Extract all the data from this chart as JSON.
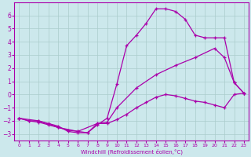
{
  "xlabel": "Windchill (Refroidissement éolien,°C)",
  "bg_color": "#cce8ec",
  "line_color": "#aa00aa",
  "grid_color": "#aacccc",
  "xlim": [
    -0.5,
    23.5
  ],
  "ylim": [
    -3.5,
    7.0
  ],
  "yticks": [
    -3,
    -2,
    -1,
    0,
    1,
    2,
    3,
    4,
    5,
    6
  ],
  "xticks": [
    0,
    1,
    2,
    3,
    4,
    5,
    6,
    7,
    8,
    9,
    10,
    11,
    12,
    13,
    14,
    15,
    16,
    17,
    18,
    19,
    20,
    21,
    22,
    23
  ],
  "curve_top_x": [
    0,
    1,
    2,
    3,
    4,
    5,
    6,
    7,
    8,
    9,
    10,
    11,
    12,
    13,
    14,
    15,
    16,
    17,
    18,
    19,
    20,
    21,
    22,
    23
  ],
  "curve_top_y": [
    -1.8,
    -2.0,
    -2.1,
    -2.3,
    -2.5,
    -2.7,
    -2.8,
    -2.9,
    -2.3,
    -1.8,
    0.8,
    3.7,
    4.5,
    5.4,
    6.5,
    6.5,
    6.3,
    5.7,
    4.5,
    4.3,
    4.3,
    4.3,
    0.9,
    0.1
  ],
  "curve_mid_x": [
    0,
    2,
    4,
    6,
    8,
    9,
    10,
    12,
    14,
    16,
    18,
    20,
    21,
    22,
    23
  ],
  "curve_mid_y": [
    -1.8,
    -2.0,
    -2.5,
    -2.8,
    -2.2,
    -2.1,
    -1.0,
    0.5,
    1.5,
    2.2,
    2.8,
    3.5,
    2.8,
    0.9,
    0.1
  ],
  "curve_bot_x": [
    0,
    1,
    2,
    3,
    4,
    5,
    6,
    7,
    8,
    9,
    10,
    11,
    12,
    13,
    14,
    15,
    16,
    17,
    18,
    19,
    20,
    21,
    22,
    23
  ],
  "curve_bot_y": [
    -1.8,
    -2.0,
    -2.0,
    -2.2,
    -2.4,
    -2.8,
    -2.9,
    -2.9,
    -2.2,
    -2.2,
    -1.9,
    -1.5,
    -1.0,
    -0.6,
    -0.2,
    0.0,
    -0.1,
    -0.3,
    -0.5,
    -0.6,
    -0.8,
    -1.0,
    0.0,
    0.1
  ]
}
